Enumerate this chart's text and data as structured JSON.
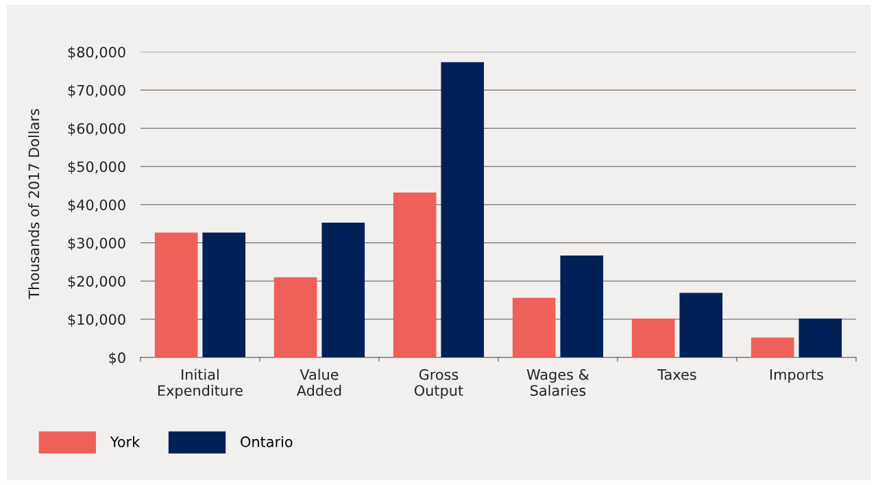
{
  "chart_data": {
    "type": "bar",
    "ylabel": "Thousands of 2017 Dollars",
    "categories": [
      "Initial\nExpenditure",
      "Value\nAdded",
      "Gross\nOutput",
      "Wages &\nSalaries",
      "Taxes",
      "Imports"
    ],
    "series": [
      {
        "name": "York",
        "color": "#f0605a",
        "values": [
          32700,
          21000,
          43200,
          15600,
          10200,
          5200
        ]
      },
      {
        "name": "Ontario",
        "color": "#002157",
        "values": [
          32700,
          35300,
          77300,
          26700,
          16900,
          10200
        ]
      }
    ],
    "ylim": [
      0,
      80000
    ],
    "yticks": [
      {
        "value": 0,
        "label": "$0"
      },
      {
        "value": 10000,
        "label": "$10,000"
      },
      {
        "value": 20000,
        "label": "$20,000"
      },
      {
        "value": 30000,
        "label": "$30,000"
      },
      {
        "value": 40000,
        "label": "$40,000"
      },
      {
        "value": 50000,
        "label": "$50,000"
      },
      {
        "value": 60000,
        "label": "$60,000"
      },
      {
        "value": 70000,
        "label": "$70,000"
      },
      {
        "value": 80000,
        "label": "$80,000"
      }
    ],
    "grid": "y",
    "legend": "bottom left"
  }
}
